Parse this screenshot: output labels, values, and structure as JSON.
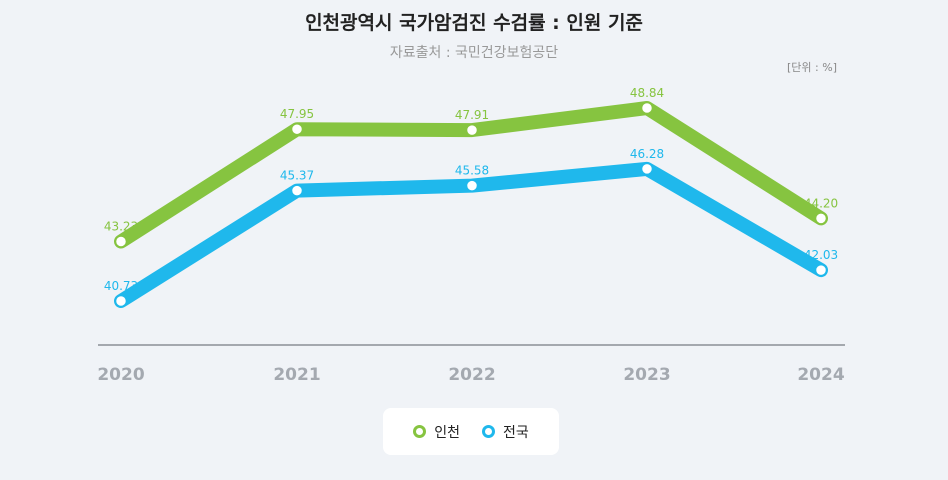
{
  "chart_data": {
    "type": "line",
    "title": "인천광역시 국가암검진 수검률 : 인원 기준",
    "subtitle": "자료출처 : 국민건강보험공단",
    "unit": "[단위 : %]",
    "categories": [
      "2020",
      "2021",
      "2022",
      "2023",
      "2024"
    ],
    "series": [
      {
        "name": "인천",
        "values": [
          43.23,
          47.95,
          47.91,
          48.84,
          44.2
        ],
        "labels": [
          "43.23",
          "47.95",
          "47.91",
          "48.84",
          "44.20"
        ],
        "color": "#86c440"
      },
      {
        "name": "전국",
        "values": [
          40.73,
          45.37,
          45.58,
          46.28,
          42.03
        ],
        "labels": [
          "40.73",
          "45.37",
          "45.58",
          "46.28",
          "42.03"
        ],
        "color": "#1fb8ec"
      }
    ],
    "ylim": [
      35,
      52
    ],
    "grid": false,
    "legend_position": "bottom-center"
  }
}
